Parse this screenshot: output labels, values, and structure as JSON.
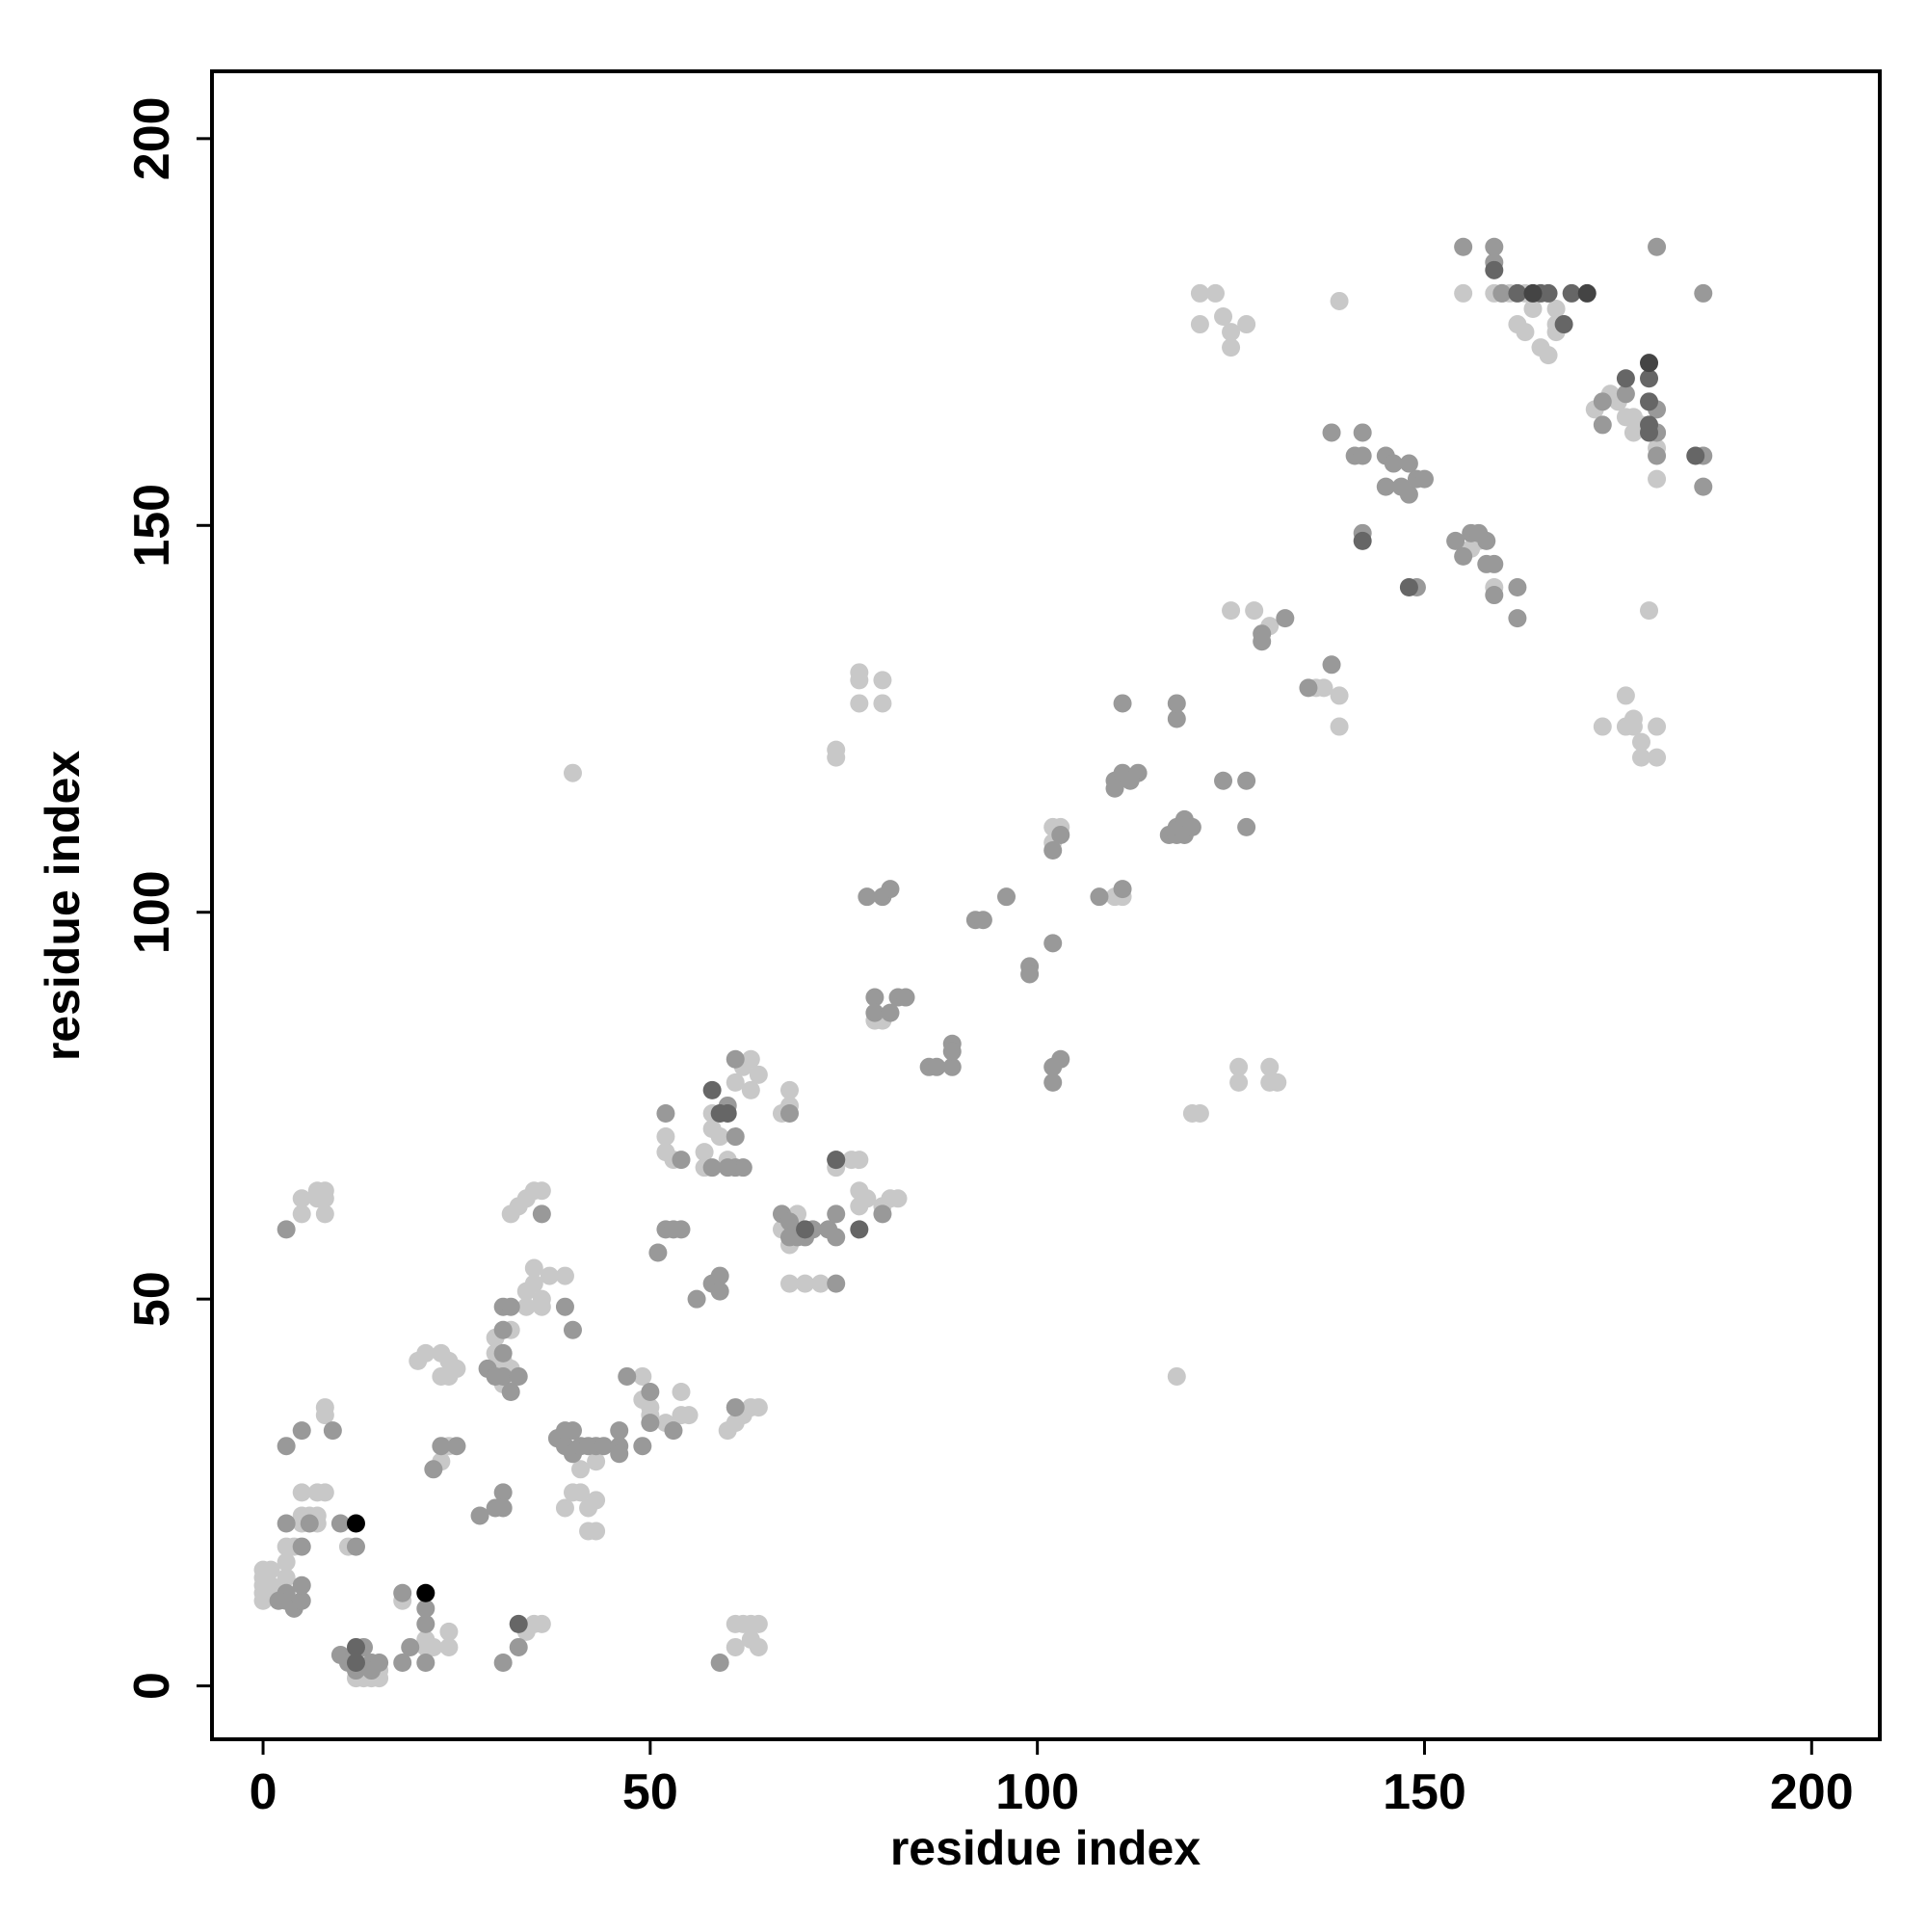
{
  "chart_data": {
    "type": "scatter",
    "x_label": "residue index",
    "y_label": "residue index",
    "xlim": [
      -6.6,
      208.8
    ],
    "ylim": [
      -6.9,
      208.7
    ],
    "xticks": [
      0,
      50,
      100,
      150,
      200
    ],
    "yticks": [
      0,
      50,
      100,
      150,
      200
    ],
    "series": [
      {
        "color": "#c8c8c8",
        "x": [
          0,
          0,
          0,
          0,
          0,
          1,
          1,
          2,
          3,
          3,
          3,
          4,
          5,
          5,
          6,
          7,
          5,
          7,
          8,
          8,
          8,
          7,
          5,
          5,
          7,
          8,
          8,
          8,
          7,
          11,
          12,
          13,
          14,
          15,
          15,
          13,
          18,
          20,
          21,
          23,
          24,
          24,
          25,
          23,
          21,
          21,
          22,
          24,
          24,
          23,
          24,
          31,
          32,
          31,
          30,
          30,
          32,
          32,
          33,
          34,
          35,
          36,
          34,
          35,
          35,
          36,
          37,
          39,
          34,
          36,
          33,
          34,
          35,
          36,
          39,
          40,
          41,
          42,
          42,
          43,
          43,
          40,
          41,
          43,
          49,
          49,
          50,
          50,
          52,
          52,
          52,
          53,
          54,
          54,
          55,
          57,
          57,
          58,
          58,
          59,
          60,
          60,
          61,
          62,
          63,
          64,
          61,
          62,
          63,
          63,
          64,
          64,
          61,
          61,
          62,
          63,
          64,
          63,
          67,
          68,
          68,
          67,
          68,
          68,
          70,
          72,
          69,
          74,
          74,
          74,
          76,
          77,
          77,
          77,
          78,
          80,
          81,
          82,
          77,
          77,
          77,
          80,
          80,
          79,
          80,
          40,
          102,
          102,
          103,
          110,
          111,
          118,
          120,
          121,
          121,
          121,
          123,
          124,
          125,
          125,
          127,
          126,
          126,
          130,
          130,
          131,
          128,
          130,
          125,
          136,
          137,
          139,
          139,
          139,
          155,
          159,
          160,
          161,
          162,
          163,
          163,
          164,
          165,
          166,
          167,
          167,
          167,
          172,
          174,
          175,
          176,
          177,
          177,
          178,
          180,
          180,
          180,
          179,
          173,
          176,
          176,
          177,
          177,
          178,
          178,
          180,
          180,
          156,
          157,
          159
        ],
        "values": [
          11,
          12,
          13,
          14,
          15,
          15,
          13,
          12,
          14,
          16,
          18,
          18,
          21,
          22,
          22,
          22,
          25,
          25,
          25,
          35,
          36,
          21,
          61,
          63,
          63,
          63,
          61,
          64,
          64,
          18,
          1,
          1,
          1,
          1,
          2,
          3,
          11,
          42,
          43,
          43,
          42,
          40,
          41,
          40,
          5,
          6,
          5,
          5,
          7,
          29,
          31,
          42,
          41,
          39,
          43,
          45,
          46,
          61,
          62,
          63,
          64,
          64,
          51,
          52,
          54,
          50,
          53,
          53,
          49,
          49,
          8,
          7,
          8,
          8,
          23,
          25,
          25,
          23,
          20,
          20,
          24,
          30,
          28,
          29,
          40,
          37,
          36,
          35,
          34,
          69,
          71,
          68,
          38,
          35,
          35,
          67,
          69,
          72,
          74,
          71,
          68,
          33,
          34,
          35,
          36,
          36,
          8,
          8,
          8,
          6,
          5,
          8,
          5,
          78,
          80,
          81,
          79,
          77,
          74,
          75,
          77,
          59,
          57,
          52,
          52,
          52,
          61,
          67,
          121,
          120,
          68,
          68,
          64,
          62,
          63,
          62,
          63,
          63,
          127,
          131,
          130,
          127,
          130,
          86,
          86,
          118,
          109,
          111,
          111,
          102,
          102,
          40,
          74,
          74,
          176,
          180,
          180,
          177,
          175,
          173,
          176,
          80,
          78,
          80,
          78,
          78,
          139,
          137,
          139,
          129,
          129,
          128,
          179,
          124,
          180,
          180,
          180,
          180,
          176,
          175,
          180,
          178,
          173,
          172,
          175,
          176,
          178,
          165,
          167,
          166,
          164,
          162,
          164,
          163,
          160,
          156,
          162,
          139,
          124,
          124,
          128,
          124,
          125,
          122,
          120,
          124,
          120,
          147,
          148,
          142
        ]
      },
      {
        "color": "#999999",
        "x": [
          3,
          3,
          5,
          3,
          5,
          3,
          3,
          4,
          5,
          5,
          2,
          6,
          9,
          10,
          12,
          10,
          11,
          12,
          13,
          14,
          14,
          15,
          18,
          18,
          19,
          21,
          21,
          21,
          22,
          23,
          25,
          28,
          30,
          31,
          31,
          29,
          31,
          30,
          31,
          32,
          33,
          31,
          32,
          31,
          31,
          33,
          36,
          39,
          40,
          38,
          39,
          40,
          39,
          40,
          41,
          42,
          43,
          44,
          46,
          46,
          46,
          47,
          49,
          50,
          50,
          51,
          52,
          53,
          54,
          52,
          54,
          53,
          56,
          58,
          59,
          59,
          59,
          61,
          60,
          61,
          61,
          62,
          60,
          58,
          61,
          67,
          68,
          68,
          69,
          70,
          71,
          73,
          74,
          74,
          68,
          74,
          74,
          78,
          80,
          81,
          79,
          82,
          83,
          79,
          81,
          80,
          86,
          87,
          89,
          89,
          89,
          92,
          93,
          96,
          99,
          99,
          102,
          102,
          103,
          102,
          102,
          103,
          108,
          111,
          110,
          110,
          111,
          113,
          112,
          111,
          117,
          118,
          118,
          119,
          119,
          120,
          118,
          118,
          124,
          127,
          127,
          129,
          129,
          132,
          135,
          138,
          138,
          141,
          142,
          142,
          142,
          145,
          145,
          146,
          147,
          148,
          148,
          149,
          150,
          149,
          154,
          155,
          156,
          158,
          158,
          159,
          159,
          162,
          162,
          157,
          155,
          159,
          159,
          160,
          173,
          173,
          176,
          180,
          180,
          180,
          180,
          186,
          186,
          186
        ],
        "values": [
          59,
          31,
          33,
          21,
          18,
          11,
          12,
          10,
          11,
          13,
          11,
          21,
          33,
          21,
          18,
          4,
          3,
          2,
          5,
          3,
          2,
          3,
          12,
          3,
          5,
          3,
          8,
          10,
          28,
          31,
          31,
          22,
          23,
          25,
          23,
          41,
          43,
          40,
          40,
          38,
          40,
          49,
          49,
          46,
          3,
          5,
          61,
          49,
          46,
          32,
          33,
          33,
          31,
          30,
          31,
          31,
          31,
          31,
          31,
          33,
          30,
          40,
          31,
          34,
          38,
          56,
          59,
          59,
          59,
          74,
          68,
          33,
          50,
          52,
          53,
          51,
          3,
          81,
          75,
          71,
          67,
          67,
          67,
          67,
          36,
          61,
          60,
          58,
          58,
          58,
          59,
          59,
          61,
          58,
          74,
          52,
          68,
          102,
          102,
          103,
          89,
          89,
          89,
          87,
          87,
          61,
          80,
          80,
          80,
          83,
          82,
          99,
          99,
          102,
          93,
          92,
          96,
          80,
          81,
          78,
          108,
          110,
          102,
          103,
          117,
          116,
          118,
          118,
          117,
          127,
          110,
          110,
          111,
          112,
          110,
          111,
          125,
          127,
          117,
          117,
          111,
          136,
          135,
          138,
          129,
          132,
          162,
          159,
          159,
          162,
          149,
          155,
          159,
          158,
          155,
          154,
          158,
          156,
          156,
          142,
          148,
          146,
          149,
          148,
          145,
          145,
          141,
          142,
          138,
          149,
          186,
          186,
          184,
          180,
          163,
          166,
          167,
          165,
          162,
          159,
          186,
          180,
          159,
          155
        ]
      },
      {
        "color": "#666666",
        "x": [
          12,
          12,
          33,
          58,
          59,
          70,
          74,
          77,
          142,
          148,
          162,
          165,
          166,
          168,
          169,
          176,
          179,
          179,
          179,
          179,
          185,
          159,
          60
        ],
        "values": [
          3,
          5,
          8,
          77,
          74,
          59,
          68,
          59,
          148,
          142,
          180,
          180,
          180,
          176,
          180,
          169,
          169,
          163,
          166,
          162,
          159,
          183,
          74
        ]
      },
      {
        "color": "#444444",
        "x": [
          171,
          179,
          164
        ],
        "values": [
          180,
          171,
          180
        ]
      },
      {
        "color": "#000000",
        "x": [
          12,
          21
        ],
        "values": [
          21,
          12
        ]
      }
    ]
  }
}
